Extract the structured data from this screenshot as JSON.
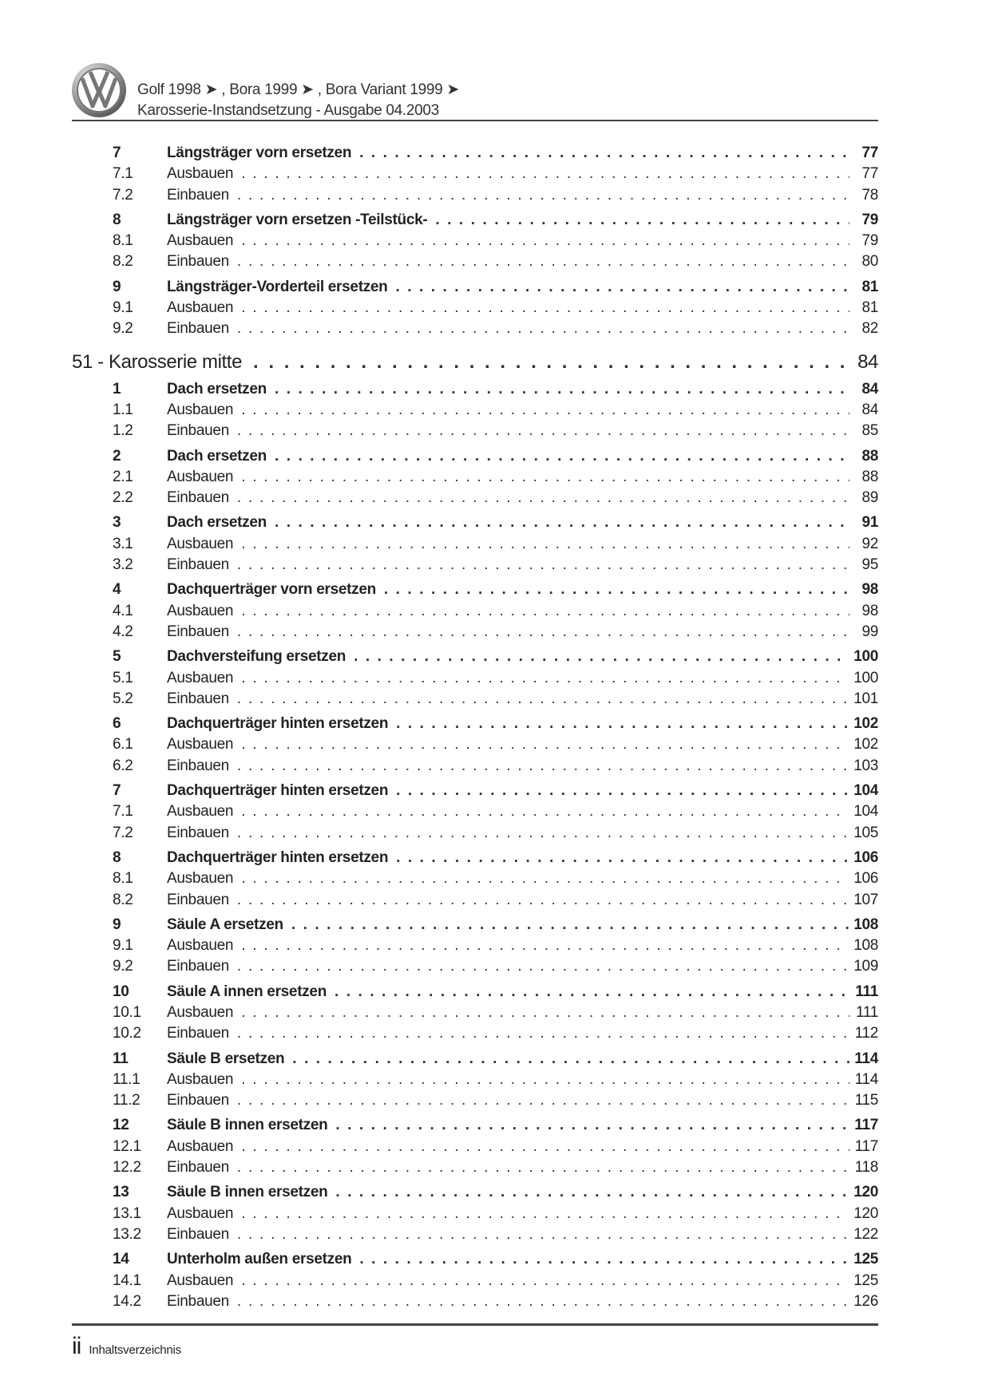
{
  "header": {
    "logo": "VW",
    "line1": "Golf 1998 ➤ , Bora 1999 ➤ , Bora Variant 1999 ➤",
    "line2": "Karosserie-Instandsetzung - Ausgabe 04.2003"
  },
  "toc": {
    "pre_groups": [
      {
        "num": "7",
        "title": "Längsträger vorn ersetzen",
        "page": "77",
        "subs": [
          {
            "num": "7.1",
            "title": "Ausbauen",
            "page": "77"
          },
          {
            "num": "7.2",
            "title": "Einbauen",
            "page": "78"
          }
        ]
      },
      {
        "num": "8",
        "title": "Längsträger vorn ersetzen -Teilstück-",
        "page": "79",
        "subs": [
          {
            "num": "8.1",
            "title": "Ausbauen",
            "page": "79"
          },
          {
            "num": "8.2",
            "title": "Einbauen",
            "page": "80"
          }
        ]
      },
      {
        "num": "9",
        "title": "Längsträger-Vorderteil ersetzen",
        "page": "81",
        "subs": [
          {
            "num": "9.1",
            "title": "Ausbauen",
            "page": "81"
          },
          {
            "num": "9.2",
            "title": "Einbauen",
            "page": "82"
          }
        ]
      }
    ],
    "chapter": {
      "title": "51 - Karosserie mitte",
      "page": "84"
    },
    "groups": [
      {
        "num": "1",
        "title": "Dach ersetzen",
        "page": "84",
        "subs": [
          {
            "num": "1.1",
            "title": "Ausbauen",
            "page": "84"
          },
          {
            "num": "1.2",
            "title": "Einbauen",
            "page": "85"
          }
        ]
      },
      {
        "num": "2",
        "title": "Dach ersetzen",
        "page": "88",
        "subs": [
          {
            "num": "2.1",
            "title": "Ausbauen",
            "page": "88"
          },
          {
            "num": "2.2",
            "title": "Einbauen",
            "page": "89"
          }
        ]
      },
      {
        "num": "3",
        "title": "Dach ersetzen",
        "page": "91",
        "subs": [
          {
            "num": "3.1",
            "title": "Ausbauen",
            "page": "92"
          },
          {
            "num": "3.2",
            "title": "Einbauen",
            "page": "95"
          }
        ]
      },
      {
        "num": "4",
        "title": "Dachquerträger vorn ersetzen",
        "page": "98",
        "subs": [
          {
            "num": "4.1",
            "title": "Ausbauen",
            "page": "98"
          },
          {
            "num": "4.2",
            "title": "Einbauen",
            "page": "99"
          }
        ]
      },
      {
        "num": "5",
        "title": "Dachversteifung ersetzen",
        "page": "100",
        "subs": [
          {
            "num": "5.1",
            "title": "Ausbauen",
            "page": "100"
          },
          {
            "num": "5.2",
            "title": "Einbauen",
            "page": "101"
          }
        ]
      },
      {
        "num": "6",
        "title": "Dachquerträger hinten ersetzen",
        "page": "102",
        "subs": [
          {
            "num": "6.1",
            "title": "Ausbauen",
            "page": "102"
          },
          {
            "num": "6.2",
            "title": "Einbauen",
            "page": "103"
          }
        ]
      },
      {
        "num": "7",
        "title": "Dachquerträger hinten ersetzen",
        "page": "104",
        "subs": [
          {
            "num": "7.1",
            "title": "Ausbauen",
            "page": "104"
          },
          {
            "num": "7.2",
            "title": "Einbauen",
            "page": "105"
          }
        ]
      },
      {
        "num": "8",
        "title": "Dachquerträger hinten ersetzen",
        "page": "106",
        "subs": [
          {
            "num": "8.1",
            "title": "Ausbauen",
            "page": "106"
          },
          {
            "num": "8.2",
            "title": "Einbauen",
            "page": "107"
          }
        ]
      },
      {
        "num": "9",
        "title": "Säule A ersetzen",
        "page": "108",
        "subs": [
          {
            "num": "9.1",
            "title": "Ausbauen",
            "page": "108"
          },
          {
            "num": "9.2",
            "title": "Einbauen",
            "page": "109"
          }
        ]
      },
      {
        "num": "10",
        "title": "Säule A innen ersetzen",
        "page": "111",
        "subs": [
          {
            "num": "10.1",
            "title": "Ausbauen",
            "page": "111"
          },
          {
            "num": "10.2",
            "title": "Einbauen",
            "page": "112"
          }
        ]
      },
      {
        "num": "11",
        "title": "Säule B ersetzen",
        "page": "114",
        "subs": [
          {
            "num": "11.1",
            "title": "Ausbauen",
            "page": "114"
          },
          {
            "num": "11.2",
            "title": "Einbauen",
            "page": "115"
          }
        ]
      },
      {
        "num": "12",
        "title": "Säule B innen ersetzen",
        "page": "117",
        "subs": [
          {
            "num": "12.1",
            "title": "Ausbauen",
            "page": "117"
          },
          {
            "num": "12.2",
            "title": "Einbauen",
            "page": "118"
          }
        ]
      },
      {
        "num": "13",
        "title": "Säule B innen ersetzen",
        "page": "120",
        "subs": [
          {
            "num": "13.1",
            "title": "Ausbauen",
            "page": "120"
          },
          {
            "num": "13.2",
            "title": "Einbauen",
            "page": "122"
          }
        ]
      },
      {
        "num": "14",
        "title": "Unterholm außen ersetzen",
        "page": "125",
        "subs": [
          {
            "num": "14.1",
            "title": "Ausbauen",
            "page": "125"
          },
          {
            "num": "14.2",
            "title": "Einbauen",
            "page": "126"
          }
        ]
      }
    ]
  },
  "footer": {
    "page_number": "ii",
    "section": "Inhaltsverzeichnis"
  }
}
